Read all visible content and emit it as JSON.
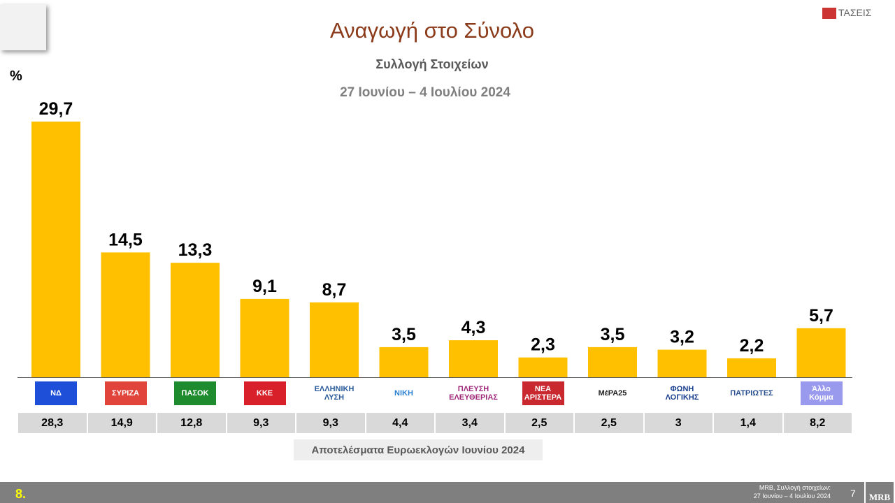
{
  "header": {
    "title": "Αναγωγή στο Σύνολο",
    "subtitle": "Συλλογή Στοιχείων",
    "period": "27 Ιουνίου – 4 Ιουλίου 2024",
    "unit": "%",
    "brand": "ΤΑΣΕΙΣ"
  },
  "chart_data": {
    "type": "bar",
    "ylabel": "%",
    "categories": [
      "ΝΔ",
      "ΣΥΡΙΖΑ",
      "ΠΑΣΟΚ",
      "ΚΚΕ",
      "ΕΛΛΗΝΙΚΗ ΛΥΣΗ",
      "ΝΙΚΗ",
      "ΠΛΕΥΣΗ ΕΛΕΥΘΕΡΙΑΣ",
      "ΝΕΑ ΑΡΙΣΤΕΡΑ",
      "ΜέΡΑ25",
      "ΦΩΝΗ ΛΟΓΙΚΗΣ",
      "ΠΑΤΡΙΩΤΕΣ",
      "Άλλο Κόμμα"
    ],
    "values": [
      29.7,
      14.5,
      13.3,
      9.1,
      8.7,
      3.5,
      4.3,
      2.3,
      3.5,
      3.2,
      2.2,
      5.7
    ],
    "labels": [
      "29,7",
      "14,5",
      "13,3",
      "9,1",
      "8,7",
      "3,5",
      "4,3",
      "2,3",
      "3,5",
      "3,2",
      "2,2",
      "5,7"
    ],
    "bar_color": "#FFC000",
    "reference": {
      "title": "Αποτελέσματα Ευρωεκλογών Ιουνίου 2024",
      "labels": [
        "28,3",
        "14,9",
        "12,8",
        "9,3",
        "9,3",
        "4,4",
        "3,4",
        "2,5",
        "2,5",
        "3",
        "1,4",
        "8,2"
      ]
    }
  },
  "logos": [
    {
      "text": "ΝΔ",
      "bg": "#1E4FD8",
      "fg": "#fff"
    },
    {
      "text": "ΣΥΡΙΖΑ",
      "bg": "#E0443A",
      "fg": "#fff"
    },
    {
      "text": "ΠΑΣΟΚ",
      "bg": "#1E8C2E",
      "fg": "#fff"
    },
    {
      "text": "ΚΚΕ",
      "bg": "#D8202A",
      "fg": "#fff"
    },
    {
      "text": "ΕΛΛΗΝΙΚΗ ΛΥΣΗ",
      "bg": "#fff",
      "fg": "#2a5b9a"
    },
    {
      "text": "ΝΙΚΗ",
      "bg": "#fff",
      "fg": "#2a7fd0"
    },
    {
      "text": "ΠΛΕΥΣΗ ΕΛΕΥΘΕΡΙΑΣ",
      "bg": "#fff",
      "fg": "#a0287a"
    },
    {
      "text": "ΝΕΑ ΑΡΙΣΤΕΡΑ",
      "bg": "#C8282E",
      "fg": "#fff"
    },
    {
      "text": "ΜέΡΑ25",
      "bg": "#fff",
      "fg": "#222"
    },
    {
      "text": "ΦΩΝΗ ΛΟΓΙΚΗΣ",
      "bg": "#fff",
      "fg": "#1a3f8f"
    },
    {
      "text": "ΠΑΤΡΙΩΤΕΣ",
      "bg": "#fff",
      "fg": "#2a4f8f"
    },
    {
      "text": "Άλλο Κόμμα",
      "bg": "#9999EE",
      "fg": "#fff"
    }
  ],
  "footer": {
    "slide_number": "8.",
    "source_line1": "MRB, Συλλογή στοιχείων:",
    "source_line2": "27 Ιουνίου – 4 Ιουλίου 2024",
    "page": "7",
    "logo": "MRB"
  }
}
